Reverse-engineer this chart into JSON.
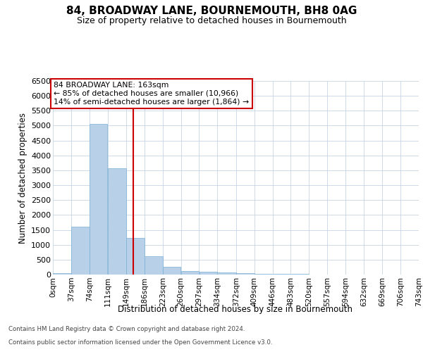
{
  "title": "84, BROADWAY LANE, BOURNEMOUTH, BH8 0AG",
  "subtitle": "Size of property relative to detached houses in Bournemouth",
  "xlabel": "Distribution of detached houses by size in Bournemouth",
  "ylabel": "Number of detached properties",
  "footer1": "Contains HM Land Registry data © Crown copyright and database right 2024.",
  "footer2": "Contains public sector information licensed under the Open Government Licence v3.0.",
  "annotation_title": "84 BROADWAY LANE: 163sqm",
  "annotation_line1": "← 85% of detached houses are smaller (10,966)",
  "annotation_line2": "14% of semi-detached houses are larger (1,864) →",
  "property_size": 163,
  "bar_color": "#b8d0e8",
  "bar_edge_color": "#7aafd4",
  "redline_color": "#cc0000",
  "bg_color": "#ffffff",
  "grid_color": "#c8d4e4",
  "bin_edges": [
    0,
    37,
    74,
    111,
    149,
    186,
    223,
    260,
    297,
    334,
    372,
    409,
    446,
    483,
    520,
    557,
    594,
    632,
    669,
    706,
    743
  ],
  "bin_labels": [
    "0sqm",
    "37sqm",
    "74sqm",
    "111sqm",
    "149sqm",
    "186sqm",
    "223sqm",
    "260sqm",
    "297sqm",
    "334sqm",
    "372sqm",
    "409sqm",
    "446sqm",
    "483sqm",
    "520sqm",
    "557sqm",
    "594sqm",
    "632sqm",
    "669sqm",
    "706sqm",
    "743sqm"
  ],
  "bar_heights": [
    55,
    1600,
    5050,
    3580,
    1220,
    620,
    270,
    120,
    100,
    75,
    50,
    30,
    25,
    15,
    10,
    5,
    3,
    2,
    1,
    1
  ],
  "ylim": [
    0,
    6500
  ],
  "yticks": [
    0,
    500,
    1000,
    1500,
    2000,
    2500,
    3000,
    3500,
    4000,
    4500,
    5000,
    5500,
    6000,
    6500
  ]
}
